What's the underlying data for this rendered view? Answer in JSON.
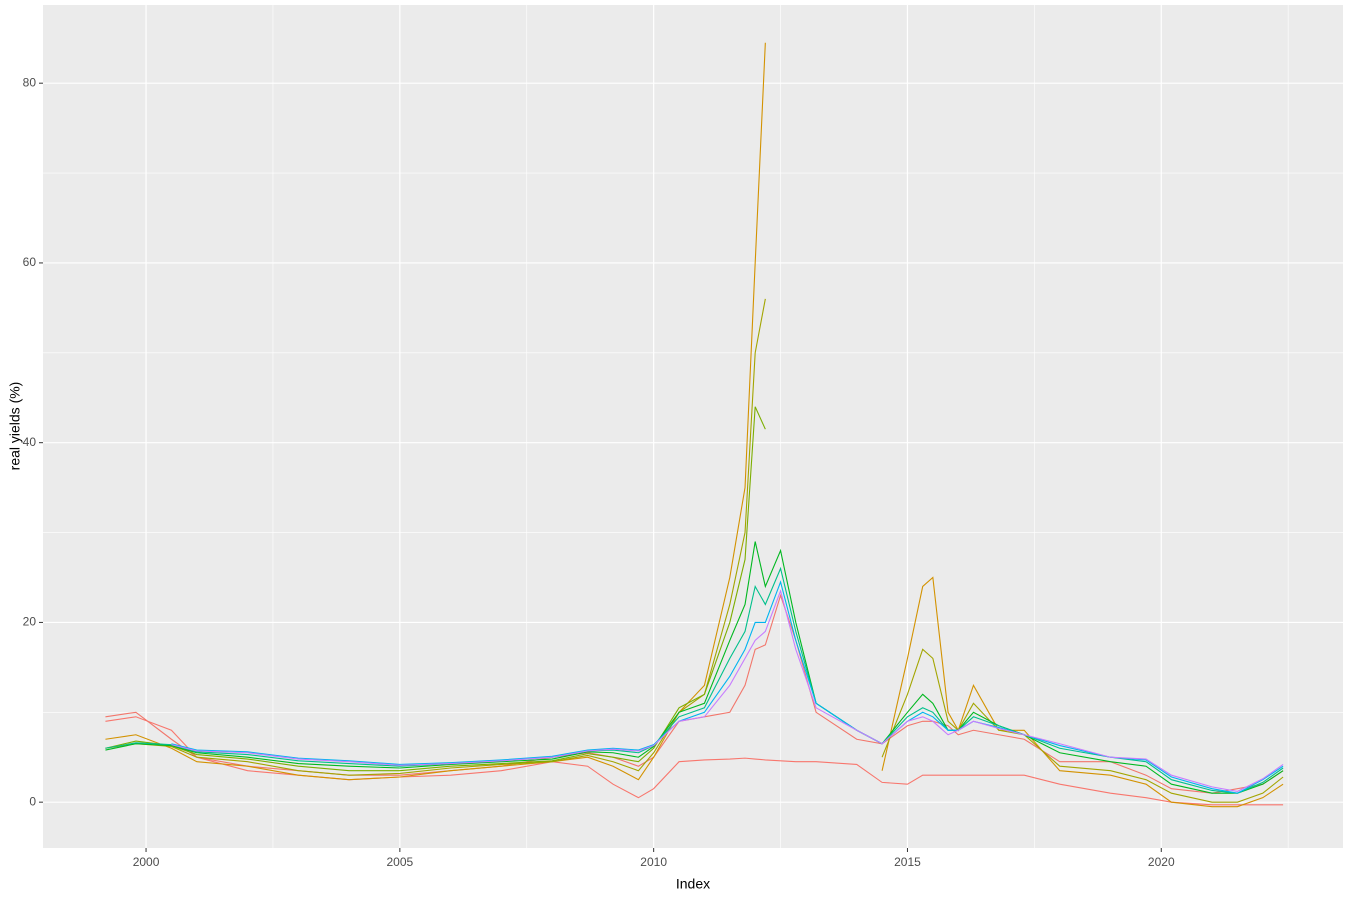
{
  "chart_data": {
    "type": "line",
    "xlabel": "Index",
    "ylabel": "real yields (%)",
    "grid": true,
    "xlim": [
      1997.97,
      2023.58
    ],
    "xticks": [
      2000,
      2005,
      2010,
      2015,
      2020
    ],
    "ylim": [
      -5.1,
      88.7
    ],
    "yticks": [
      0,
      20,
      40,
      60,
      80
    ],
    "x": [
      1999.2,
      1999.8,
      2000.5,
      2001,
      2002,
      2003,
      2004,
      2005,
      2006,
      2007,
      2008,
      2008.7,
      2009.2,
      2009.7,
      2010,
      2010.5,
      2011,
      2011.5,
      2011.8,
      2012,
      2012.2,
      2012.5,
      2012.8,
      2013.2,
      2014,
      2014.5,
      2015,
      2015.3,
      2015.5,
      2015.8,
      2016,
      2016.3,
      2016.8,
      2017.3,
      2018,
      2019,
      2019.7,
      2020.2,
      2021,
      2021.5,
      2022,
      2022.4
    ],
    "series": [
      {
        "color": "#F8766D",
        "values": [
          9,
          9.5,
          8,
          5,
          3.5,
          3,
          2.5,
          2.8,
          3,
          3.5,
          4.5,
          4,
          2,
          0.5,
          1.5,
          4.5,
          4.7,
          4.8,
          4.9,
          4.8,
          4.7,
          4.6,
          4.5,
          4.5,
          4.2,
          2.2,
          2,
          3,
          3,
          3,
          3,
          3,
          3,
          3,
          2,
          1,
          0.5,
          0,
          -0.3,
          -0.3,
          -0.3,
          -0.3
        ]
      },
      {
        "color": "#F2766B",
        "values": [
          9.5,
          10,
          7,
          5,
          4,
          3.5,
          3,
          3,
          3.5,
          4,
          5,
          5.5,
          5,
          4,
          5,
          9,
          9.5,
          10,
          13,
          17,
          17.5,
          23,
          18,
          10,
          7,
          6.5,
          8.5,
          9,
          9,
          8.5,
          7.5,
          8,
          7.5,
          7,
          4.5,
          4.5,
          3,
          1.5,
          1,
          1.5,
          2,
          3.5
        ]
      },
      {
        "color": "#D39200",
        "values": [
          7,
          7.5,
          6,
          4.5,
          4,
          3,
          2.5,
          2.8,
          3.5,
          4,
          4.5,
          5,
          4,
          2.5,
          5,
          10,
          13,
          25,
          35,
          60,
          84.5,
          null,
          null,
          null,
          null,
          3.5,
          16,
          24,
          25,
          10,
          8,
          13,
          8,
          8,
          3.5,
          3,
          2,
          0,
          -0.5,
          -0.5,
          0.5,
          2
        ]
      },
      {
        "color": "#A3A500",
        "values": [
          6,
          6.5,
          6.2,
          5,
          4.5,
          3.5,
          3,
          3.2,
          3.8,
          4.2,
          4.5,
          5.2,
          4.5,
          3.5,
          5.5,
          10,
          12,
          22,
          30,
          50,
          56,
          null,
          null,
          null,
          null,
          5,
          12,
          17,
          16,
          9,
          8,
          11,
          8,
          7.5,
          4,
          3.5,
          2.5,
          1,
          0,
          0,
          1,
          2.8
        ]
      },
      {
        "color": "#7CAE00",
        "values": [
          6,
          6.8,
          6.3,
          5.3,
          4.8,
          4,
          3.5,
          3.5,
          4,
          4.3,
          4.6,
          5.4,
          5,
          4.5,
          6,
          10.5,
          12,
          20,
          27,
          44,
          41.5,
          null,
          null,
          null,
          null,
          null,
          null,
          null,
          null,
          null,
          null,
          null,
          null,
          null,
          null,
          null,
          null,
          null,
          null,
          null,
          null,
          null
        ]
      },
      {
        "color": "#00B81F",
        "values": [
          5.8,
          6.5,
          6.3,
          5.5,
          5,
          4.3,
          4,
          3.8,
          4.2,
          4.5,
          4.8,
          5.6,
          5.5,
          5,
          6.2,
          10,
          11,
          18,
          22,
          29,
          24,
          28,
          20,
          11,
          8,
          6.5,
          10,
          12,
          11,
          8,
          8,
          10,
          8.5,
          7.5,
          5.5,
          4.5,
          4,
          2,
          1,
          1,
          2,
          3.5
        ]
      },
      {
        "color": "#00C08B",
        "values": [
          6,
          6.6,
          6.4,
          5.6,
          5.3,
          4.6,
          4.3,
          4,
          4.3,
          4.6,
          5,
          5.7,
          5.8,
          5.5,
          6.3,
          9.5,
          10.5,
          16,
          19,
          24,
          22,
          26,
          19,
          11,
          8,
          6.5,
          9.5,
          10.5,
          10,
          8,
          8,
          9.5,
          8.5,
          7.5,
          6,
          5,
          4.5,
          2.5,
          1.3,
          1,
          2.2,
          3.8
        ]
      },
      {
        "color": "#00B4F0",
        "values": [
          null,
          null,
          6.5,
          5.8,
          5.6,
          4.9,
          4.6,
          4.2,
          4.4,
          4.7,
          5.1,
          5.8,
          6,
          5.8,
          6.4,
          9,
          10,
          14,
          17,
          20,
          20,
          24.5,
          18,
          11,
          8,
          6.5,
          9,
          10,
          9.5,
          8,
          8,
          9,
          8.3,
          7.5,
          6.3,
          5,
          4.7,
          2.8,
          1.5,
          1,
          2.5,
          4
        ]
      },
      {
        "color": "#C77CFF",
        "values": [
          null,
          null,
          6.4,
          5.7,
          5.5,
          4.8,
          4.5,
          4.1,
          4.3,
          4.6,
          5,
          5.7,
          5.9,
          5.7,
          6.3,
          9,
          9.5,
          13,
          16,
          18,
          19,
          23.5,
          17,
          10.5,
          8,
          6.5,
          9,
          9.5,
          9,
          7.5,
          8,
          9,
          8.2,
          7.5,
          6.5,
          5,
          4.8,
          3,
          1.7,
          1.2,
          2.6,
          4.2
        ]
      }
    ]
  }
}
